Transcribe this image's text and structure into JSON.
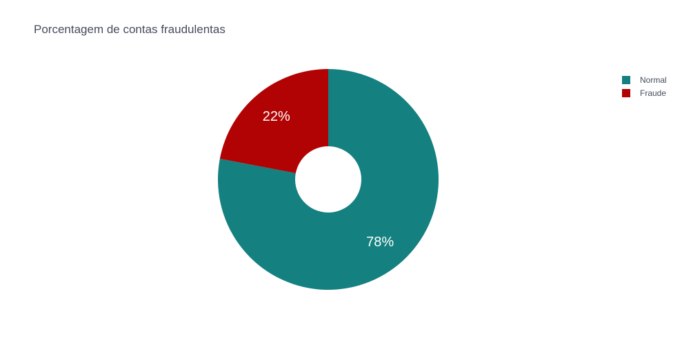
{
  "chart_data": {
    "type": "pie",
    "title": "Porcentagem de contas fraudulentas",
    "hole": true,
    "legend_position": "top-right",
    "slices": [
      {
        "label": "Normal",
        "value": 78,
        "text": "78%",
        "color": "#148080"
      },
      {
        "label": "Fraude",
        "value": 22,
        "text": "22%",
        "color": "#b10304"
      }
    ]
  }
}
